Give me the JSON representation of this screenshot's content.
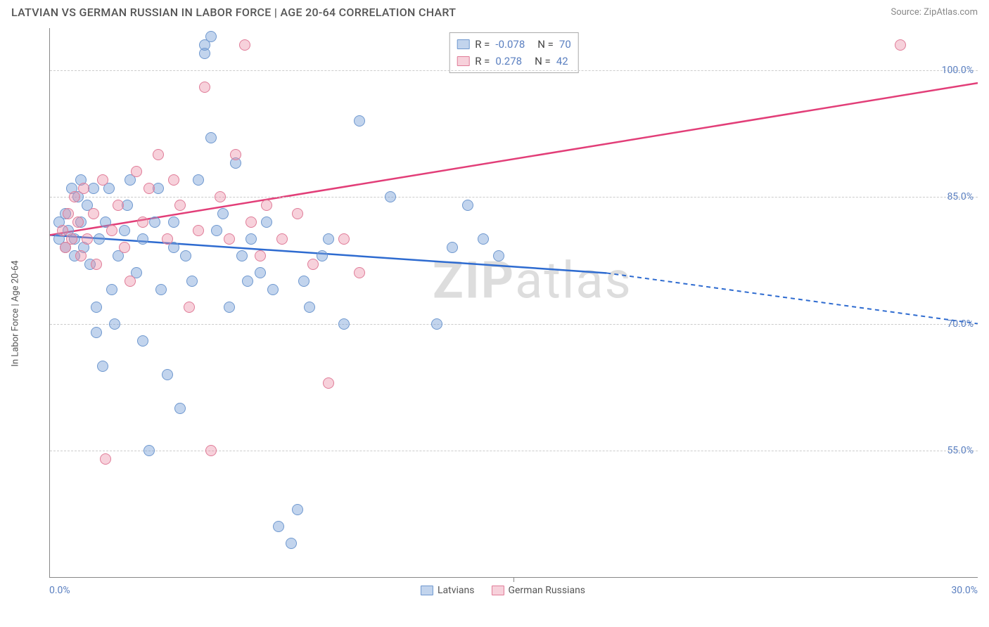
{
  "header": {
    "title": "LATVIAN VS GERMAN RUSSIAN IN LABOR FORCE | AGE 20-64 CORRELATION CHART",
    "source": "Source: ZipAtlas.com"
  },
  "chart": {
    "type": "scatter",
    "ylabel": "In Labor Force | Age 20-64",
    "xlim": [
      0,
      30
    ],
    "ylim": [
      40,
      105
    ],
    "x_ticks": [
      0,
      15,
      30
    ],
    "x_tick_labels": [
      "0.0%",
      "",
      "30.0%"
    ],
    "y_ticks": [
      55,
      70,
      85,
      100
    ],
    "y_tick_labels": [
      "55.0%",
      "70.0%",
      "85.0%",
      "100.0%"
    ],
    "grid_color": "#cccccc",
    "axis_color": "#888888",
    "background_color": "#ffffff",
    "watermark": {
      "text_bold": "ZIP",
      "text_rest": "atlas"
    },
    "series": [
      {
        "name": "Latvians",
        "fill": "rgba(120,160,215,0.45)",
        "stroke": "#6f98cf",
        "line_color": "#2e6bd0",
        "R": "-0.078",
        "N": "70",
        "trend": {
          "x1": 0,
          "y1": 80.5,
          "x2_solid": 18,
          "y2_solid": 76,
          "x2_dash": 30,
          "y2_dash": 70
        },
        "points": [
          [
            0.3,
            80
          ],
          [
            0.3,
            82
          ],
          [
            0.5,
            79
          ],
          [
            0.5,
            83
          ],
          [
            0.6,
            81
          ],
          [
            0.7,
            86
          ],
          [
            0.8,
            78
          ],
          [
            0.8,
            80
          ],
          [
            0.9,
            85
          ],
          [
            1.0,
            87
          ],
          [
            1.0,
            82
          ],
          [
            1.1,
            79
          ],
          [
            1.2,
            84
          ],
          [
            1.3,
            77
          ],
          [
            1.4,
            86
          ],
          [
            1.5,
            69
          ],
          [
            1.5,
            72
          ],
          [
            1.6,
            80
          ],
          [
            1.7,
            65
          ],
          [
            1.8,
            82
          ],
          [
            1.9,
            86
          ],
          [
            2.0,
            74
          ],
          [
            2.1,
            70
          ],
          [
            2.2,
            78
          ],
          [
            2.4,
            81
          ],
          [
            2.5,
            84
          ],
          [
            2.6,
            87
          ],
          [
            2.8,
            76
          ],
          [
            3.0,
            68
          ],
          [
            3.0,
            80
          ],
          [
            3.2,
            55
          ],
          [
            3.4,
            82
          ],
          [
            3.5,
            86
          ],
          [
            3.6,
            74
          ],
          [
            3.8,
            64
          ],
          [
            4.0,
            82
          ],
          [
            4.0,
            79
          ],
          [
            4.2,
            60
          ],
          [
            4.4,
            78
          ],
          [
            4.6,
            75
          ],
          [
            4.8,
            87
          ],
          [
            5.0,
            102
          ],
          [
            5.0,
            103
          ],
          [
            5.2,
            92
          ],
          [
            5.2,
            104
          ],
          [
            5.4,
            81
          ],
          [
            5.6,
            83
          ],
          [
            5.8,
            72
          ],
          [
            6.0,
            89
          ],
          [
            6.2,
            78
          ],
          [
            6.4,
            75
          ],
          [
            6.5,
            80
          ],
          [
            6.8,
            76
          ],
          [
            7.0,
            82
          ],
          [
            7.2,
            74
          ],
          [
            7.4,
            46
          ],
          [
            7.8,
            44
          ],
          [
            8.0,
            48
          ],
          [
            8.2,
            75
          ],
          [
            8.4,
            72
          ],
          [
            8.8,
            78
          ],
          [
            9.0,
            80
          ],
          [
            9.5,
            70
          ],
          [
            10.0,
            94
          ],
          [
            11.0,
            85
          ],
          [
            12.5,
            70
          ],
          [
            13.0,
            79
          ],
          [
            13.5,
            84
          ],
          [
            14.0,
            80
          ],
          [
            14.5,
            78
          ]
        ]
      },
      {
        "name": "German Russians",
        "fill": "rgba(235,140,165,0.4)",
        "stroke": "#e07c98",
        "line_color": "#e23e78",
        "R": "0.278",
        "N": "42",
        "trend": {
          "x1": 0,
          "y1": 80.5,
          "x2_solid": 30,
          "y2_solid": 98.5,
          "x2_dash": 30,
          "y2_dash": 98.5
        },
        "points": [
          [
            0.4,
            81
          ],
          [
            0.5,
            79
          ],
          [
            0.6,
            83
          ],
          [
            0.7,
            80
          ],
          [
            0.8,
            85
          ],
          [
            0.9,
            82
          ],
          [
            1.0,
            78
          ],
          [
            1.1,
            86
          ],
          [
            1.2,
            80
          ],
          [
            1.4,
            83
          ],
          [
            1.5,
            77
          ],
          [
            1.7,
            87
          ],
          [
            1.8,
            54
          ],
          [
            2.0,
            81
          ],
          [
            2.2,
            84
          ],
          [
            2.4,
            79
          ],
          [
            2.6,
            75
          ],
          [
            2.8,
            88
          ],
          [
            3.0,
            82
          ],
          [
            3.2,
            86
          ],
          [
            3.5,
            90
          ],
          [
            3.8,
            80
          ],
          [
            4.0,
            87
          ],
          [
            4.2,
            84
          ],
          [
            4.5,
            72
          ],
          [
            4.8,
            81
          ],
          [
            5.0,
            98
          ],
          [
            5.2,
            55
          ],
          [
            5.5,
            85
          ],
          [
            5.8,
            80
          ],
          [
            6.0,
            90
          ],
          [
            6.3,
            103
          ],
          [
            6.5,
            82
          ],
          [
            6.8,
            78
          ],
          [
            7.0,
            84
          ],
          [
            7.5,
            80
          ],
          [
            8.0,
            83
          ],
          [
            8.5,
            77
          ],
          [
            9.0,
            63
          ],
          [
            9.5,
            80
          ],
          [
            10.0,
            76
          ],
          [
            27.5,
            103
          ]
        ]
      }
    ],
    "legend_bottom": [
      {
        "label": "Latvians",
        "fill": "rgba(120,160,215,0.45)",
        "stroke": "#6f98cf"
      },
      {
        "label": "German Russians",
        "fill": "rgba(235,140,165,0.4)",
        "stroke": "#e07c98"
      }
    ]
  }
}
